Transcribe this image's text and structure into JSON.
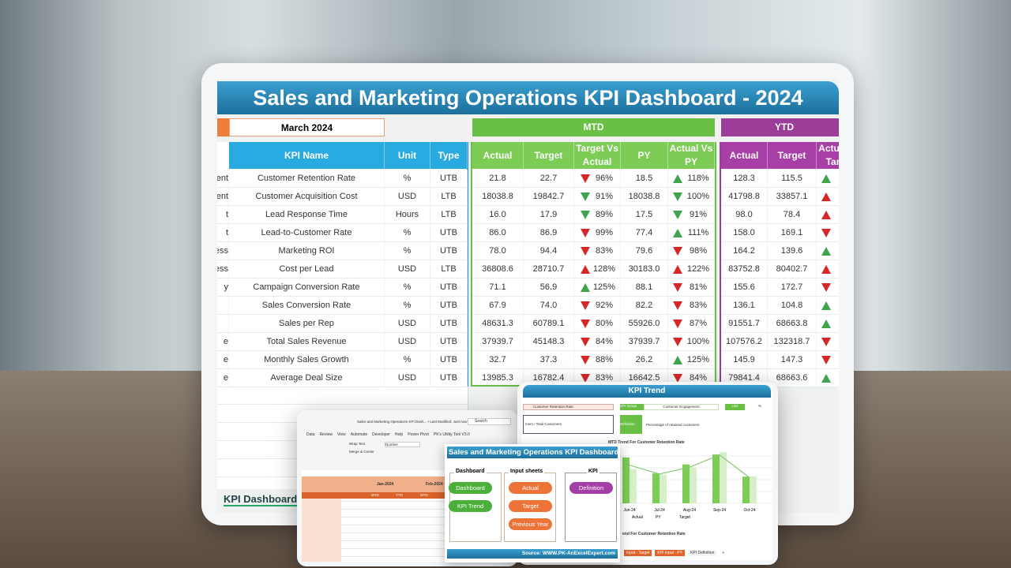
{
  "dashboard": {
    "title": "Sales and Marketing Operations KPI Dashboard - 2024",
    "selected_month": "March 2024",
    "mtd_label": "MTD",
    "ytd_label": "YTD",
    "sheet_tab": "KPI Dashboard",
    "columns": {
      "kpi_name": "KPI Name",
      "unit": "Unit",
      "type": "Type",
      "actual": "Actual",
      "target": "Target",
      "target_vs_actual": "Target Vs Actual",
      "py": "PY",
      "actual_vs_py": "Actual Vs PY",
      "ytd_actual": "Actual",
      "ytd_target": "Target",
      "ytd_actual_vs_target": "Actual Vs Target"
    },
    "colors": {
      "title": "#1f78a8",
      "kpi_header": "#29abe2",
      "mtd": "#6abf45",
      "ytd": "#9c3d9a",
      "up_good": "#3fa34d",
      "down_bad": "#d62728",
      "month": "#ef7d3c"
    },
    "rows": [
      {
        "group": "ent",
        "kpi": "Customer Retention Rate",
        "unit": "%",
        "type": "UTB",
        "mtd_actual": "21.8",
        "mtd_target": "22.7",
        "tva_dir": "down",
        "tva_color": "red",
        "tva": "96%",
        "py": "18.5",
        "avp_dir": "up",
        "avp_color": "green",
        "avp": "118%",
        "ytd_actual": "128.3",
        "ytd_target": "115.5",
        "ytd_dir": "up",
        "ytd_color": "green"
      },
      {
        "group": "ent",
        "kpi": "Customer Acquisition Cost",
        "unit": "USD",
        "type": "LTB",
        "mtd_actual": "18038.8",
        "mtd_target": "19842.7",
        "tva_dir": "down",
        "tva_color": "green",
        "tva": "91%",
        "py": "18038.8",
        "avp_dir": "down",
        "avp_color": "green",
        "avp": "100%",
        "ytd_actual": "41798.8",
        "ytd_target": "33857.1",
        "ytd_dir": "up",
        "ytd_color": "red"
      },
      {
        "group": "t",
        "kpi": "Lead Response Time",
        "unit": "Hours",
        "type": "LTB",
        "mtd_actual": "16.0",
        "mtd_target": "17.9",
        "tva_dir": "down",
        "tva_color": "green",
        "tva": "89%",
        "py": "17.5",
        "avp_dir": "down",
        "avp_color": "green",
        "avp": "91%",
        "ytd_actual": "98.0",
        "ytd_target": "78.4",
        "ytd_dir": "up",
        "ytd_color": "red"
      },
      {
        "group": "t",
        "kpi": "Lead-to-Customer Rate",
        "unit": "%",
        "type": "UTB",
        "mtd_actual": "86.0",
        "mtd_target": "86.9",
        "tva_dir": "down",
        "tva_color": "red",
        "tva": "99%",
        "py": "77.4",
        "avp_dir": "up",
        "avp_color": "green",
        "avp": "111%",
        "ytd_actual": "158.0",
        "ytd_target": "169.1",
        "ytd_dir": "down",
        "ytd_color": "red"
      },
      {
        "group": "ess",
        "kpi": "Marketing ROI",
        "unit": "%",
        "type": "UTB",
        "mtd_actual": "78.0",
        "mtd_target": "94.4",
        "tva_dir": "down",
        "tva_color": "red",
        "tva": "83%",
        "py": "79.6",
        "avp_dir": "down",
        "avp_color": "red",
        "avp": "98%",
        "ytd_actual": "164.2",
        "ytd_target": "139.6",
        "ytd_dir": "up",
        "ytd_color": "green"
      },
      {
        "group": "ess",
        "kpi": "Cost per Lead",
        "unit": "USD",
        "type": "LTB",
        "mtd_actual": "36808.6",
        "mtd_target": "28710.7",
        "tva_dir": "up",
        "tva_color": "red",
        "tva": "128%",
        "py": "30183.0",
        "avp_dir": "up",
        "avp_color": "red",
        "avp": "122%",
        "ytd_actual": "83752.8",
        "ytd_target": "80402.7",
        "ytd_dir": "up",
        "ytd_color": "red"
      },
      {
        "group": "y",
        "kpi": "Campaign Conversion Rate",
        "unit": "%",
        "type": "UTB",
        "mtd_actual": "71.1",
        "mtd_target": "56.9",
        "tva_dir": "up",
        "tva_color": "green",
        "tva": "125%",
        "py": "88.1",
        "avp_dir": "down",
        "avp_color": "red",
        "avp": "81%",
        "ytd_actual": "155.6",
        "ytd_target": "172.7",
        "ytd_dir": "down",
        "ytd_color": "red"
      },
      {
        "group": "",
        "kpi": "Sales Conversion Rate",
        "unit": "%",
        "type": "UTB",
        "mtd_actual": "67.9",
        "mtd_target": "74.0",
        "tva_dir": "down",
        "tva_color": "red",
        "tva": "92%",
        "py": "82.2",
        "avp_dir": "down",
        "avp_color": "red",
        "avp": "83%",
        "ytd_actual": "136.1",
        "ytd_target": "104.8",
        "ytd_dir": "up",
        "ytd_color": "green"
      },
      {
        "group": "",
        "kpi": "Sales per Rep",
        "unit": "USD",
        "type": "UTB",
        "mtd_actual": "48631.3",
        "mtd_target": "60789.1",
        "tva_dir": "down",
        "tva_color": "red",
        "tva": "80%",
        "py": "55926.0",
        "avp_dir": "down",
        "avp_color": "red",
        "avp": "87%",
        "ytd_actual": "91551.7",
        "ytd_target": "68663.8",
        "ytd_dir": "up",
        "ytd_color": "green"
      },
      {
        "group": "e",
        "kpi": "Total Sales Revenue",
        "unit": "USD",
        "type": "UTB",
        "mtd_actual": "37939.7",
        "mtd_target": "45148.3",
        "tva_dir": "down",
        "tva_color": "red",
        "tva": "84%",
        "py": "37939.7",
        "avp_dir": "down",
        "avp_color": "red",
        "avp": "100%",
        "ytd_actual": "107576.2",
        "ytd_target": "132318.7",
        "ytd_dir": "down",
        "ytd_color": "red"
      },
      {
        "group": "e",
        "kpi": "Monthly Sales Growth",
        "unit": "%",
        "type": "UTB",
        "mtd_actual": "32.7",
        "mtd_target": "37.3",
        "tva_dir": "down",
        "tva_color": "red",
        "tva": "88%",
        "py": "26.2",
        "avp_dir": "up",
        "avp_color": "green",
        "avp": "125%",
        "ytd_actual": "145.9",
        "ytd_target": "147.3",
        "ytd_dir": "down",
        "ytd_color": "red"
      },
      {
        "group": "e",
        "kpi": "Average Deal Size",
        "unit": "USD",
        "type": "UTB",
        "mtd_actual": "13985.3",
        "mtd_target": "16782.4",
        "tva_dir": "down",
        "tva_color": "red",
        "tva": "83%",
        "py": "16642.5",
        "avp_dir": "down",
        "avp_color": "red",
        "avp": "84%",
        "ytd_actual": "79841.4",
        "ytd_target": "68663.6",
        "ytd_dir": "up",
        "ytd_color": "green"
      }
    ]
  },
  "trend": {
    "title": "KPI Trend",
    "kpi": "Customer Retention Rate",
    "kpi_group_label": "KPI Group",
    "kpi_group": "Customer Engagement",
    "unit_label": "Unit",
    "unit": "%",
    "formula": "mers / Total Customers",
    "definition_label": "Definition",
    "definition": "Percentage of retained customers",
    "chart_title": "MTD Trend For Customer Retention Rate",
    "chart2_title": "end For Customer Retention Rate",
    "months": [
      "Jun-24",
      "Jul-24",
      "Aug-24",
      "Sep-24",
      "Oct-24"
    ],
    "legend": [
      "Actual",
      "PY",
      "Target"
    ],
    "tabs": [
      "Input - Target",
      "KPI Input - PY",
      "KPI Definition",
      "+"
    ]
  },
  "menu": {
    "title": "Sales and Marketing Operations KPI Dashboard",
    "groups": [
      {
        "label": "Dashboard",
        "items": [
          "Dashboard",
          "KPI Trend"
        ]
      },
      {
        "label": "Input sheets",
        "items": [
          "Actual",
          "Target",
          "Previous Year"
        ]
      },
      {
        "label": "KPI",
        "items": [
          "Definition"
        ]
      }
    ],
    "source": "Source: WWW.PK-AnExcelExpert.com"
  },
  "excel": {
    "title": "Sales and Marketing Operations KPI Dash... • Last Modified: Just now",
    "search": "Search",
    "ribbon": [
      "Data",
      "Review",
      "View",
      "Automate",
      "Developer",
      "Help",
      "Power Pivot",
      "PK's Utility Tool V3.0"
    ],
    "wrap_text": "Wrap Text",
    "merge": "Merge & Center",
    "number_format": "Number",
    "months": [
      "Jan-2024",
      "Feb-2024",
      "Mar-2024"
    ],
    "sub": [
      "MTD",
      "YTD",
      "MTD",
      "YTD",
      "MTD"
    ]
  }
}
